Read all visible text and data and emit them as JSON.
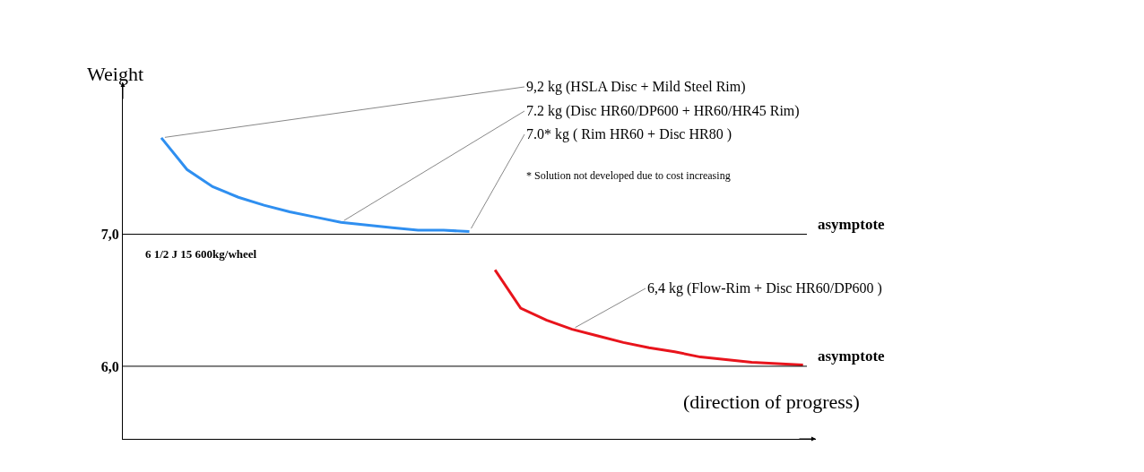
{
  "chart_data": {
    "type": "line",
    "ylabel": "Weight",
    "xlabel": "(direction of progress)",
    "categories": [
      null,
      null,
      null,
      null,
      null,
      null,
      null,
      null,
      null,
      null,
      null,
      null,
      null,
      null,
      null,
      null,
      null,
      null,
      null,
      null,
      null,
      null,
      null,
      null,
      null,
      null,
      null
    ],
    "series": [
      {
        "color": "#2f8ff0",
        "values": [
          null,
          7.73,
          7.49,
          7.36,
          7.28,
          7.22,
          7.17,
          7.13,
          7.09,
          7.07,
          7.05,
          7.03,
          7.03,
          7.02,
          null,
          null,
          null,
          null,
          null,
          null,
          null,
          null,
          null,
          null,
          null,
          null,
          null
        ]
      },
      {
        "color": "#e8141c",
        "values": [
          null,
          null,
          null,
          null,
          null,
          null,
          null,
          null,
          null,
          null,
          null,
          null,
          null,
          null,
          6.73,
          6.44,
          6.35,
          6.28,
          6.23,
          6.18,
          6.14,
          6.11,
          6.07,
          6.05,
          6.03,
          6.02,
          6.01
        ]
      }
    ],
    "ylim": [
      5.45,
      8.15
    ],
    "yticks": [
      {
        "value": 7.0,
        "label": "7,0"
      },
      {
        "value": 6.0,
        "label": "6,0"
      }
    ],
    "ref_lines": [
      {
        "axis": "y",
        "value": 7.0,
        "label": "asymptote",
        "color": "#000000"
      },
      {
        "axis": "y",
        "value": 6.0,
        "label": "asymptote",
        "color": "#000000"
      }
    ],
    "annotations": [
      "9,2 kg (HSLA Disc + Mild Steel Rim)",
      "7.2 kg (Disc HR60/DP600 + HR60/HR45 Rim)",
      "7.0* kg ( Rim HR60 + Disc HR80 )",
      "* Solution not developed due to cost increasing",
      "6 1/2 J 15 600kg/wheel",
      "6,4 kg (Flow-Rim + Disc HR60/DP600 )"
    ],
    "marker": "none",
    "line_style": "solid",
    "tick_labels": "y"
  }
}
